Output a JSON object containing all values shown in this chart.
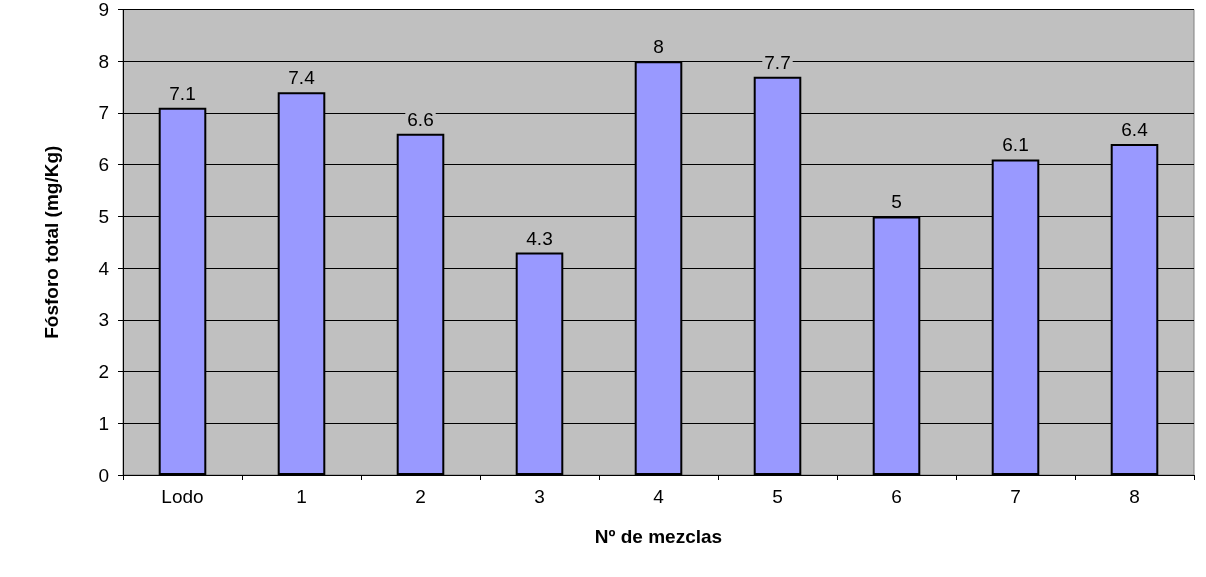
{
  "chart_data": {
    "type": "bar",
    "xlabel": "Nº de mezclas",
    "ylabel": "Fósforo total (mg/Kg)",
    "categories": [
      "Lodo",
      "1",
      "2",
      "3",
      "4",
      "5",
      "6",
      "7",
      "8"
    ],
    "values": [
      7.1,
      7.4,
      6.6,
      4.3,
      8,
      7.7,
      5,
      6.1,
      6.4
    ],
    "color": "#9999ff",
    "ylim": [
      0,
      9
    ],
    "yticks": [
      0,
      1,
      2,
      3,
      4,
      5,
      6,
      7,
      8,
      9
    ],
    "grid": "y",
    "data_labels": true
  }
}
